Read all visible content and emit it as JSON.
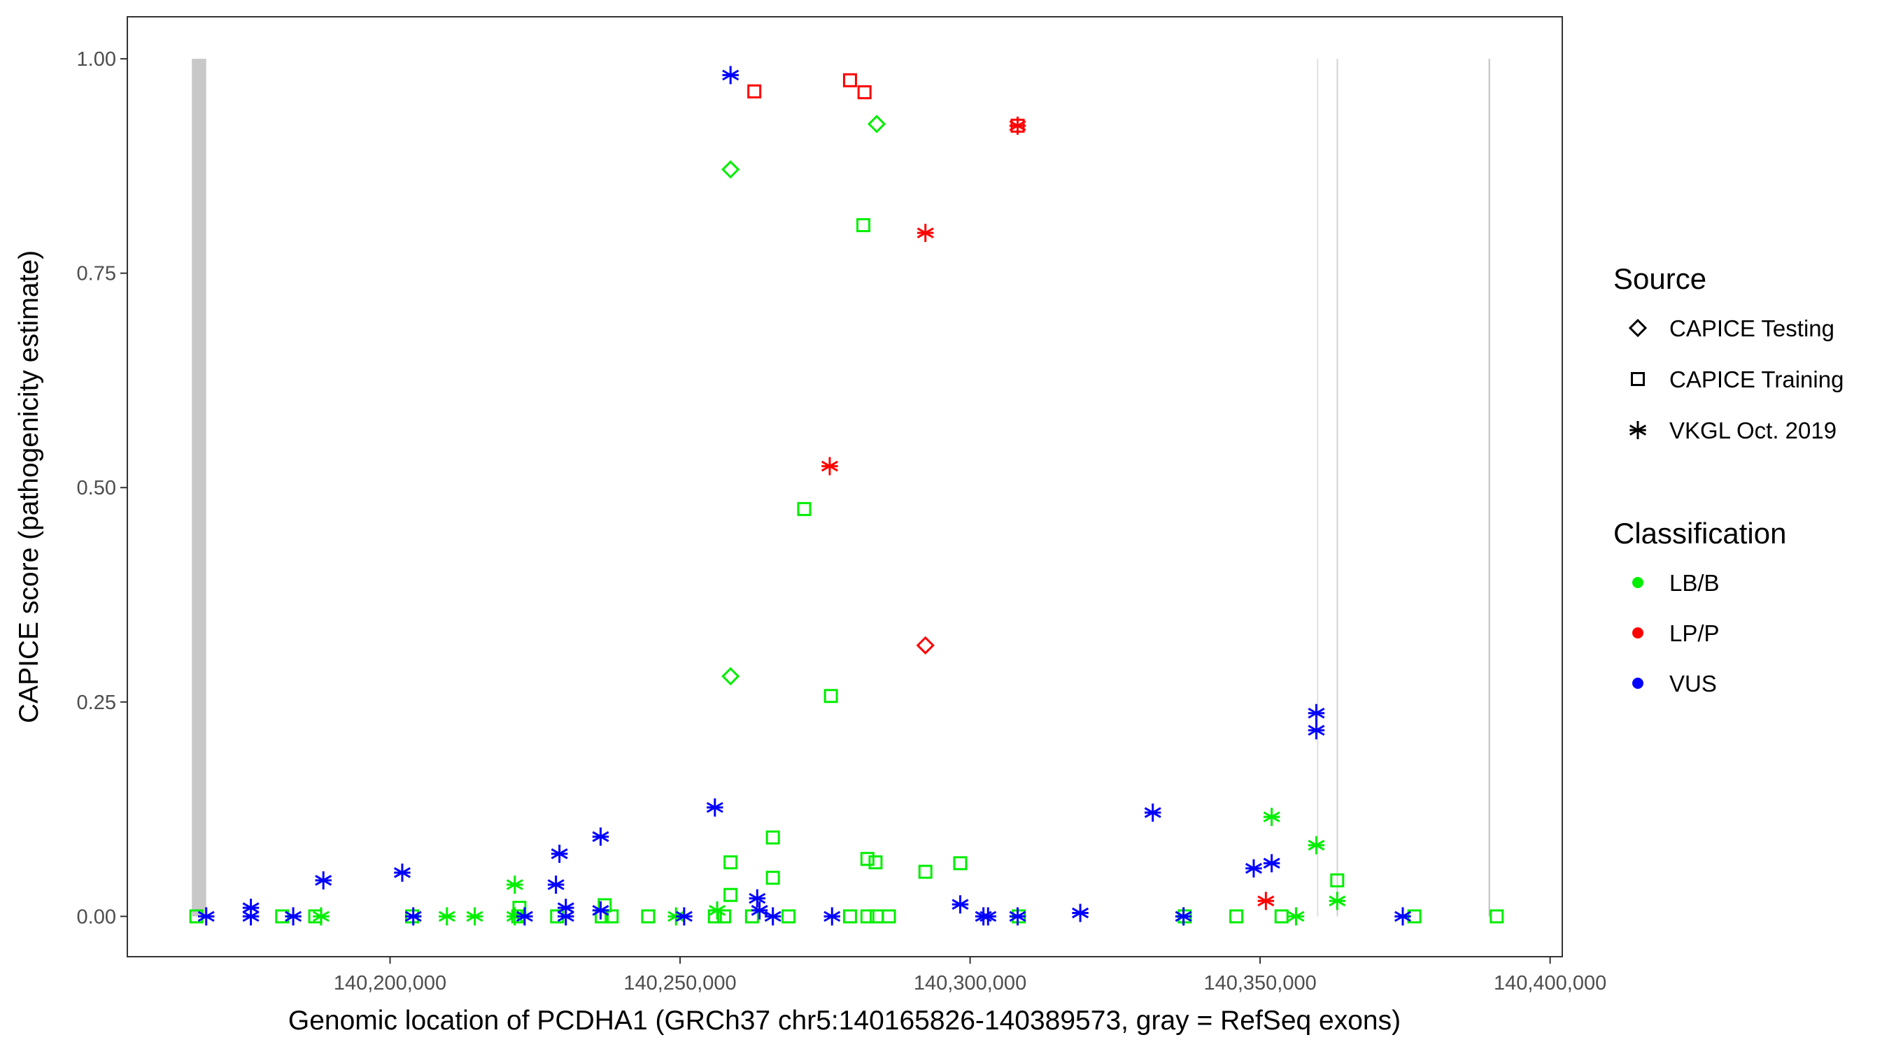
{
  "chart_data": {
    "type": "scatter",
    "xlabel": "Genomic location of PCDHA1 (GRCh37 chr5:140165826-140389573, gray = RefSeq exons)",
    "ylabel": "CAPICE score (pathogenicity estimate)",
    "xlim": [
      140154700,
      140402100
    ],
    "ylim": [
      -0.047,
      1.049
    ],
    "x_ticks": [
      140200000,
      140250000,
      140300000,
      140350000,
      140400000
    ],
    "x_tick_labels": [
      "140,200,000",
      "140,250,000",
      "140,300,000",
      "140,350,000",
      "140,400,000"
    ],
    "y_ticks": [
      0,
      0.25,
      0.5,
      0.75,
      1
    ],
    "y_tick_labels": [
      "0.00",
      "0.25",
      "0.50",
      "0.75",
      "1.00"
    ],
    "grid": false,
    "legend_placement": "right",
    "legend": {
      "source_title": "Source",
      "sources": [
        {
          "name": "CAPICE Testing",
          "shape": "diamond"
        },
        {
          "name": "CAPICE Training",
          "shape": "square"
        },
        {
          "name": "VKGL Oct. 2019",
          "shape": "asterisk"
        }
      ],
      "class_title": "Classification",
      "classes": [
        {
          "name": "LB/B",
          "color": "#00ee00"
        },
        {
          "name": "LP/P",
          "color": "#ff0000"
        },
        {
          "name": "VUS",
          "color": "#0000ff"
        }
      ]
    },
    "exons": [
      {
        "start": 140165826,
        "end": 140168300,
        "color": "#c8c8c8"
      },
      {
        "start": 140359800,
        "end": 140360000,
        "color": "#e0e0e0"
      },
      {
        "start": 140363200,
        "end": 140363400,
        "color": "#d0d0d0"
      },
      {
        "start": 140389400,
        "end": 140389573,
        "color": "#c0c0c0"
      }
    ],
    "series": [
      {
        "source": "CAPICE Training",
        "class": "LB/B",
        "x": [
          140166600,
          140181400,
          140187100,
          140203800,
          140222100,
          140228800,
          140236500,
          140238200,
          140244500,
          140256000,
          140257600,
          140262400,
          140268700,
          140279300,
          140282300,
          140283900,
          140286000,
          140308400,
          140337000,
          140345900,
          140353700,
          140376600,
          140390800,
          140258700,
          140258700,
          140266000,
          140266000,
          140271400,
          140276000,
          140281600,
          140282300,
          140283700,
          140292300,
          140298300,
          140363300,
          140222300,
          140237000
        ],
        "y": [
          0,
          0,
          0,
          0,
          0,
          0,
          0,
          0,
          0,
          0,
          0,
          0,
          0,
          0,
          0,
          0,
          0,
          0,
          0,
          0,
          0,
          0,
          0,
          0.025,
          0.063,
          0.092,
          0.045,
          0.475,
          0.257,
          0.806,
          0.067,
          0.063,
          0.052,
          0.062,
          0.042,
          0.01,
          0.013
        ]
      },
      {
        "source": "VKGL Oct. 2019",
        "class": "LB/B",
        "x": [
          140188100,
          140209800,
          140214600,
          140221500,
          140221500,
          140249300,
          140256400,
          140336800,
          140352000,
          140356200,
          140359700,
          140363300
        ],
        "y": [
          0,
          0,
          0,
          0.037,
          0,
          0,
          0.007,
          0,
          0.116,
          0,
          0.083,
          0.018
        ]
      },
      {
        "source": "CAPICE Testing",
        "class": "LB/B",
        "x": [
          140258700,
          140283900,
          140258700
        ],
        "y": [
          0.871,
          0.924,
          0.28
        ]
      },
      {
        "source": "CAPICE Training",
        "class": "LP/P",
        "x": [
          140262800,
          140279300,
          140281800,
          140308200
        ],
        "y": [
          0.962,
          0.975,
          0.961,
          0.922
        ]
      },
      {
        "source": "VKGL Oct. 2019",
        "class": "LP/P",
        "x": [
          140292300,
          140275800,
          140308200,
          140351000
        ],
        "y": [
          0.797,
          0.525,
          0.922,
          0.018
        ]
      },
      {
        "source": "CAPICE Testing",
        "class": "LP/P",
        "x": [
          140292300
        ],
        "y": [
          0.316
        ]
      },
      {
        "source": "VKGL Oct. 2019",
        "class": "VUS",
        "x": [
          140168300,
          140176000,
          140176000,
          140183300,
          140188500,
          140202100,
          140204000,
          140223200,
          140228600,
          140229200,
          140230300,
          140230300,
          140236300,
          140236300,
          140250700,
          140256000,
          140258700,
          140263300,
          140263700,
          140266000,
          140276200,
          140298300,
          140302300,
          140303100,
          140308200,
          140319000,
          140331500,
          140336800,
          140348900,
          140352000,
          140359700,
          140359700,
          140374600
        ],
        "y": [
          0,
          0.01,
          0,
          0,
          0.042,
          0.051,
          0,
          0,
          0.037,
          0.073,
          0.01,
          0,
          0.093,
          0.007,
          0,
          0.127,
          0.981,
          0.021,
          0.007,
          0,
          0,
          0.014,
          0,
          0,
          0,
          0.004,
          0.121,
          0,
          0.056,
          0.062,
          0.237,
          0.217,
          0
        ]
      }
    ]
  }
}
